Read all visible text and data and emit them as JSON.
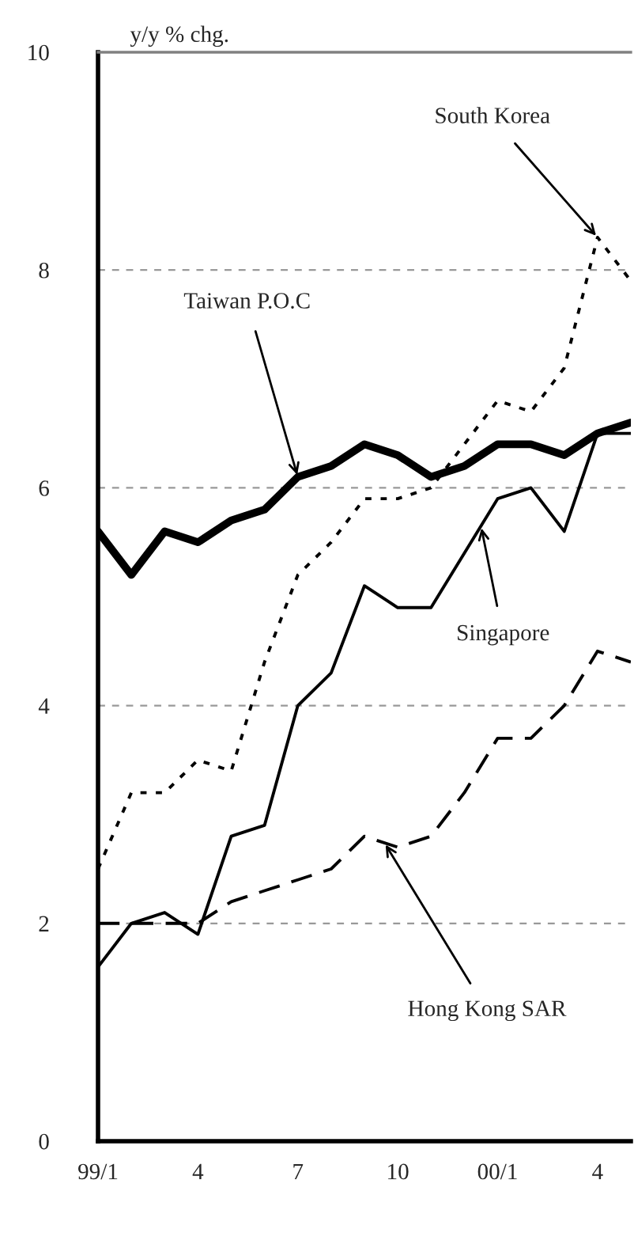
{
  "chart_data": {
    "type": "line",
    "ylabel": "y/y % chg.",
    "categories": [
      "99/1",
      null,
      null,
      "4",
      null,
      null,
      "7",
      null,
      null,
      "10",
      null,
      null,
      "00/1",
      null,
      null,
      "4",
      null
    ],
    "ylim": [
      0,
      10
    ],
    "yticks": [
      0,
      2,
      4,
      6,
      8,
      10
    ],
    "grid": "y",
    "legend": false,
    "marker": "none",
    "series": [
      {
        "name": "Taiwan P.O.C",
        "color": "#000000",
        "line_style": "solid",
        "values": [
          5.6,
          5.2,
          5.6,
          5.5,
          5.7,
          5.8,
          6.1,
          6.2,
          6.4,
          6.3,
          6.1,
          6.2,
          6.4,
          6.4,
          6.3,
          6.5,
          6.6
        ]
      },
      {
        "name": "South Korea",
        "color": "#000000",
        "line_style": "dotted",
        "values": [
          2.5,
          3.2,
          3.2,
          3.5,
          3.4,
          4.4,
          5.2,
          5.5,
          5.9,
          5.9,
          6.0,
          6.4,
          6.8,
          6.7,
          7.1,
          8.3,
          7.9
        ]
      },
      {
        "name": "Singapore",
        "color": "#000000",
        "line_style": "solid",
        "values": [
          1.6,
          2.0,
          2.1,
          1.9,
          2.8,
          2.9,
          4.0,
          4.3,
          5.1,
          4.9,
          4.9,
          5.4,
          5.9,
          6.0,
          5.6,
          6.5,
          6.5
        ]
      },
      {
        "name": "Hong Kong SAR",
        "color": "#000000",
        "line_style": "dashed",
        "values": [
          2.0,
          2.0,
          2.0,
          2.0,
          2.2,
          2.3,
          2.4,
          2.5,
          2.8,
          2.7,
          2.8,
          3.2,
          3.7,
          3.7,
          4.0,
          4.5,
          4.4
        ]
      }
    ]
  }
}
